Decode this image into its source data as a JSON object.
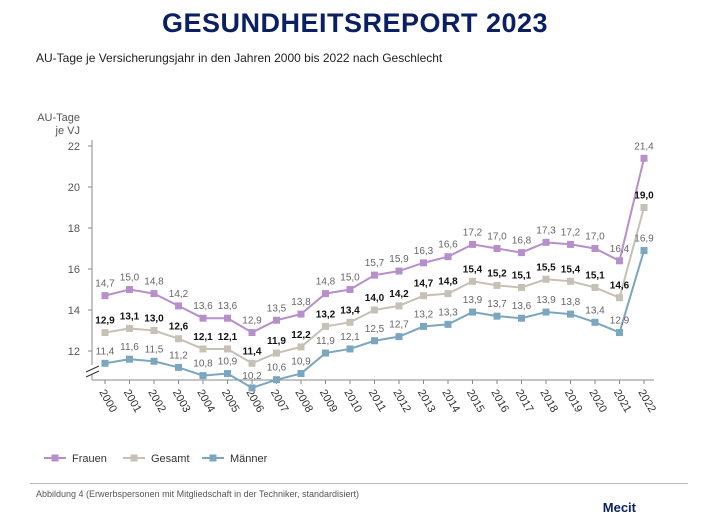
{
  "header": {
    "title": "GESUNDHEITSREPORT 2023",
    "subtitle": "AU-Tage je Versicherungsjahr in den Jahren 2000 bis 2022 nach Geschlecht"
  },
  "footer": {
    "caption": "Abbildung 4 (Erwerbspersonen mit Mitgliedschaft in der Techniker, standardisiert)",
    "brand": "Mecit"
  },
  "colors": {
    "frauen": "#b68fcc",
    "gesamt": "#c7c0b5",
    "maenner": "#7aa7bf",
    "axis": "#888888",
    "label": "#555555"
  },
  "chart_data": {
    "type": "line",
    "title": "AU-Tage je Versicherungsjahr in den Jahren 2000 bis 2022 nach Geschlecht",
    "ylabel": "AU-Tage je VJ",
    "xlabel": "",
    "ylim": [
      10,
      22
    ],
    "yticks": [
      12,
      14,
      16,
      18,
      20,
      22
    ],
    "y_axis_break": true,
    "grid": false,
    "legend_position": "bottom-left",
    "categories": [
      "2000",
      "2001",
      "2002",
      "2003",
      "2004",
      "2005",
      "2006",
      "2007",
      "2008",
      "2009",
      "2010",
      "2011",
      "2012",
      "2013",
      "2014",
      "2015",
      "2016",
      "2017",
      "2018",
      "2019",
      "2020",
      "2021",
      "2022"
    ],
    "series": [
      {
        "name": "Frauen",
        "values": [
          14.7,
          15.0,
          14.8,
          14.2,
          13.6,
          13.6,
          12.9,
          13.5,
          13.8,
          14.8,
          15.0,
          15.7,
          15.9,
          16.3,
          16.6,
          17.2,
          17.0,
          16.8,
          17.3,
          17.2,
          17.0,
          16.4,
          21.4
        ]
      },
      {
        "name": "Gesamt",
        "values": [
          12.9,
          13.1,
          13.0,
          12.6,
          12.1,
          12.1,
          11.4,
          11.9,
          12.2,
          13.2,
          13.4,
          14.0,
          14.2,
          14.7,
          14.8,
          15.4,
          15.2,
          15.1,
          15.5,
          15.4,
          15.1,
          14.6,
          19.0
        ]
      },
      {
        "name": "Männer",
        "values": [
          11.4,
          11.6,
          11.5,
          11.2,
          10.8,
          10.9,
          10.2,
          10.6,
          10.9,
          11.9,
          12.1,
          12.5,
          12.7,
          13.2,
          13.3,
          13.9,
          13.7,
          13.6,
          13.9,
          13.8,
          13.4,
          12.9,
          16.9
        ]
      }
    ],
    "value_labels": {
      "Frauen": [
        "14,7",
        "15,0",
        "14,8",
        "14,2",
        "13,6",
        "13,6",
        "12,9",
        "13,5",
        "13,8",
        "14,8",
        "15,0",
        "15,7",
        "15,9",
        "16,3",
        "16,6",
        "17,2",
        "17,0",
        "16,8",
        "17,3",
        "17,2",
        "17,0",
        "16,4",
        "21,4"
      ],
      "Gesamt": [
        "12,9",
        "13,1",
        "13,0",
        "12,6",
        "12,1",
        "12,1",
        "11,4",
        "11,9",
        "12,2",
        "13,2",
        "13,4",
        "14,0",
        "14,2",
        "14,7",
        "14,8",
        "15,4",
        "15,2",
        "15,1",
        "15,5",
        "15,4",
        "15,1",
        "14,6",
        "19,0"
      ],
      "Männer": [
        "11,4",
        "11,6",
        "11,5",
        "11,2",
        "10,8",
        "10,9",
        "10,2",
        "10,6",
        "10,9",
        "11,9",
        "12,1",
        "12,5",
        "12,7",
        "13,2",
        "13,3",
        "13,9",
        "13,7",
        "13,6",
        "13,9",
        "13,8",
        "13,4",
        "12,9",
        "16,9"
      ]
    }
  }
}
